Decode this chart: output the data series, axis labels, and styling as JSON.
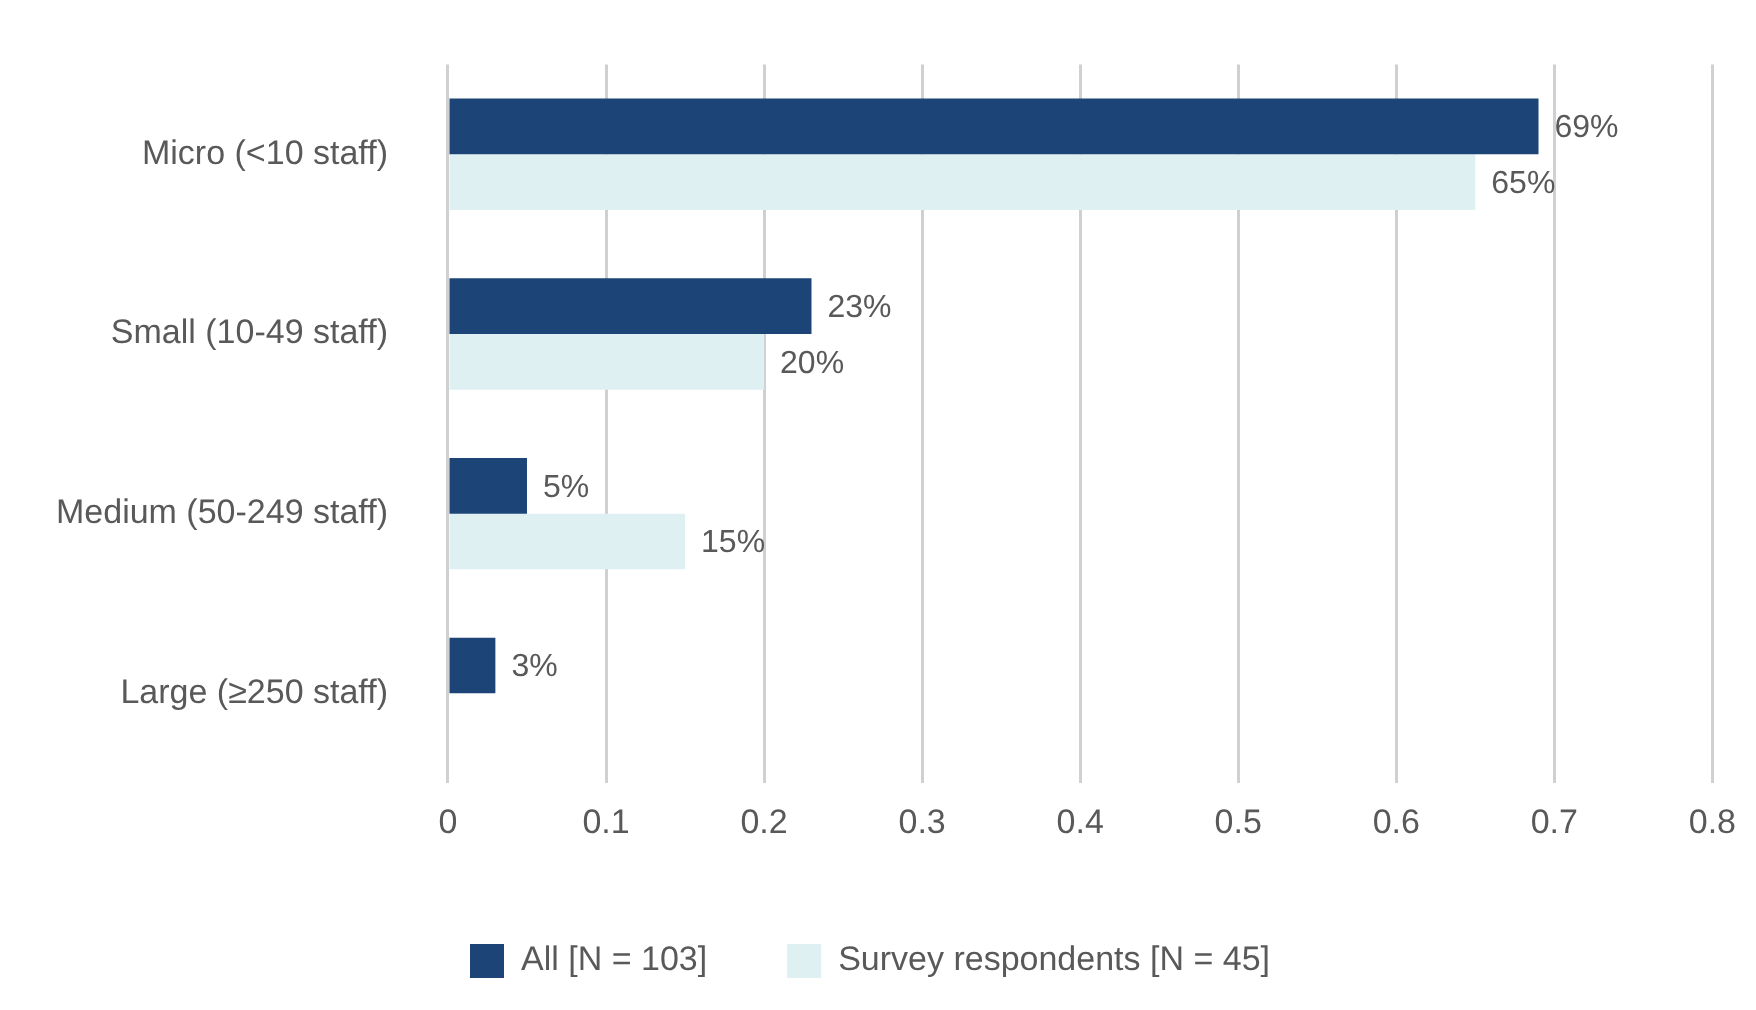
{
  "chart_data": {
    "type": "bar",
    "orientation": "horizontal",
    "categories": [
      "Micro (<10 staff)",
      "Small (10-49 staff)",
      "Medium (50-249 staff)",
      "Large (≥250 staff)"
    ],
    "series": [
      {
        "name": "All [N = 103]",
        "color": "#1d4477",
        "values": [
          0.69,
          0.23,
          0.05,
          0.03
        ],
        "value_labels": [
          "69%",
          "23%",
          "5%",
          "3%"
        ]
      },
      {
        "name": "Survey respondents [N = 45]",
        "color": "#dff0f3",
        "values": [
          0.65,
          0.2,
          0.15,
          null
        ],
        "value_labels": [
          "65%",
          "20%",
          "15%",
          null
        ]
      }
    ],
    "xlim": [
      0,
      0.8
    ],
    "xticks": [
      0,
      0.1,
      0.2,
      0.3,
      0.4,
      0.5,
      0.6,
      0.7,
      0.8
    ],
    "grid": "x",
    "legend": "bottom"
  }
}
